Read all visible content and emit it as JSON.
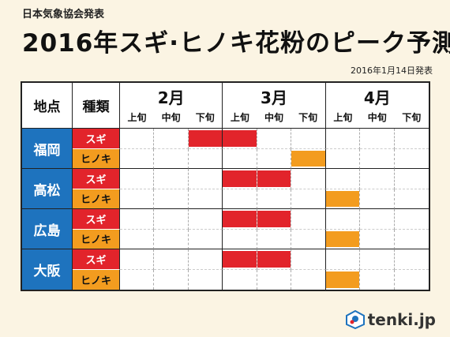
{
  "header": {
    "source": "日本気象協会発表",
    "title": "2016年スギ·ヒノキ花粉のピーク予測",
    "date": "2016年1月14日発表"
  },
  "table": {
    "col_location": "地点",
    "col_type": "種類",
    "months": [
      "2月",
      "3月",
      "4月"
    ],
    "periods": [
      "上旬",
      "中旬",
      "下旬"
    ],
    "rows": [
      {
        "location": "福岡",
        "entries": [
          {
            "type": "スギ",
            "peak": [
              2,
              3
            ]
          },
          {
            "type": "ヒノキ",
            "peak": [
              5
            ]
          }
        ]
      },
      {
        "location": "高松",
        "entries": [
          {
            "type": "スギ",
            "peak": [
              3,
              4
            ]
          },
          {
            "type": "ヒノキ",
            "peak": [
              6
            ]
          }
        ]
      },
      {
        "location": "広島",
        "entries": [
          {
            "type": "スギ",
            "peak": [
              3,
              4
            ]
          },
          {
            "type": "ヒノキ",
            "peak": [
              6
            ]
          }
        ]
      },
      {
        "location": "大阪",
        "entries": [
          {
            "type": "スギ",
            "peak": [
              3,
              4
            ]
          },
          {
            "type": "ヒノキ",
            "peak": [
              6
            ]
          }
        ]
      }
    ]
  },
  "colors": {
    "sugi": "#e2242b",
    "hinoki": "#f39c1f",
    "location": "#1e73be"
  },
  "logo": {
    "text": "tenki.jp",
    "icon": "tenki-logo-icon"
  }
}
